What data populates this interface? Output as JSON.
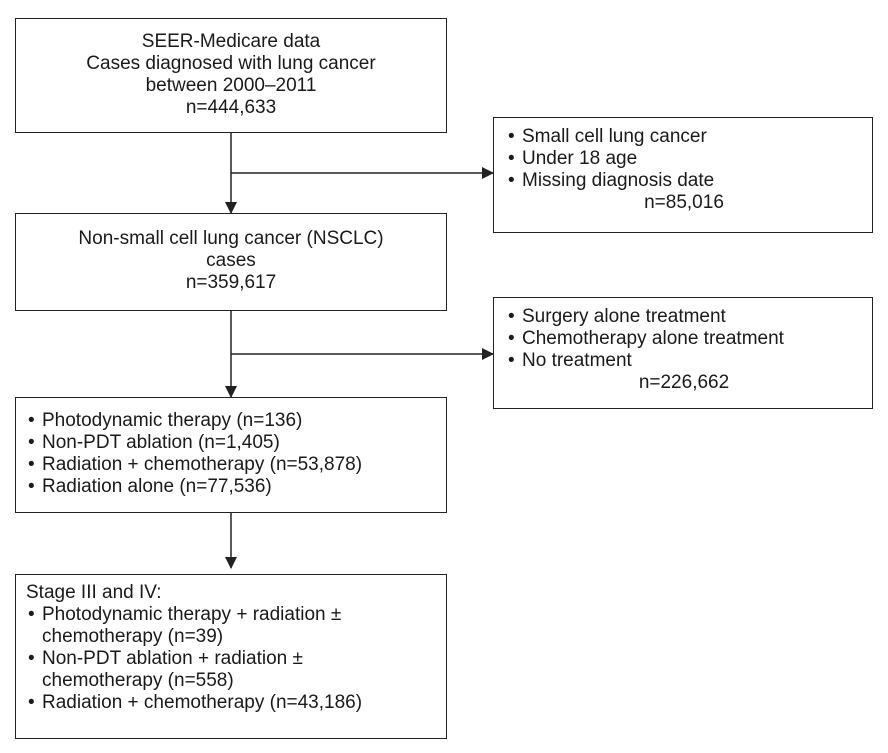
{
  "box1": {
    "lines": [
      "SEER-Medicare data",
      "Cases diagnosed with lung cancer",
      "between 2000–2011",
      "n=444,633"
    ]
  },
  "exclusion1": {
    "items": [
      "Small cell lung cancer",
      "Under 18 age",
      "Missing diagnosis date"
    ],
    "count": "n=85,016"
  },
  "box2": {
    "lines": [
      "Non-small cell lung cancer (NSCLC)",
      "cases",
      "n=359,617"
    ]
  },
  "exclusion2": {
    "items": [
      "Surgery alone treatment",
      "Chemotherapy alone treatment",
      "No treatment"
    ],
    "count": "n=226,662"
  },
  "box3": {
    "items": [
      "Photodynamic therapy (n=136)",
      "Non-PDT ablation (n=1,405)",
      "Radiation + chemotherapy (n=53,878)",
      "Radiation alone (n=77,536)"
    ]
  },
  "box4": {
    "heading": "Stage III and IV:",
    "items": [
      [
        "Photodynamic therapy + radiation ±",
        "chemotherapy (n=39)"
      ],
      [
        "Non-PDT ablation + radiation ±",
        "chemotherapy (n=558)"
      ],
      [
        "Radiation + chemotherapy (n=43,186)"
      ]
    ]
  }
}
